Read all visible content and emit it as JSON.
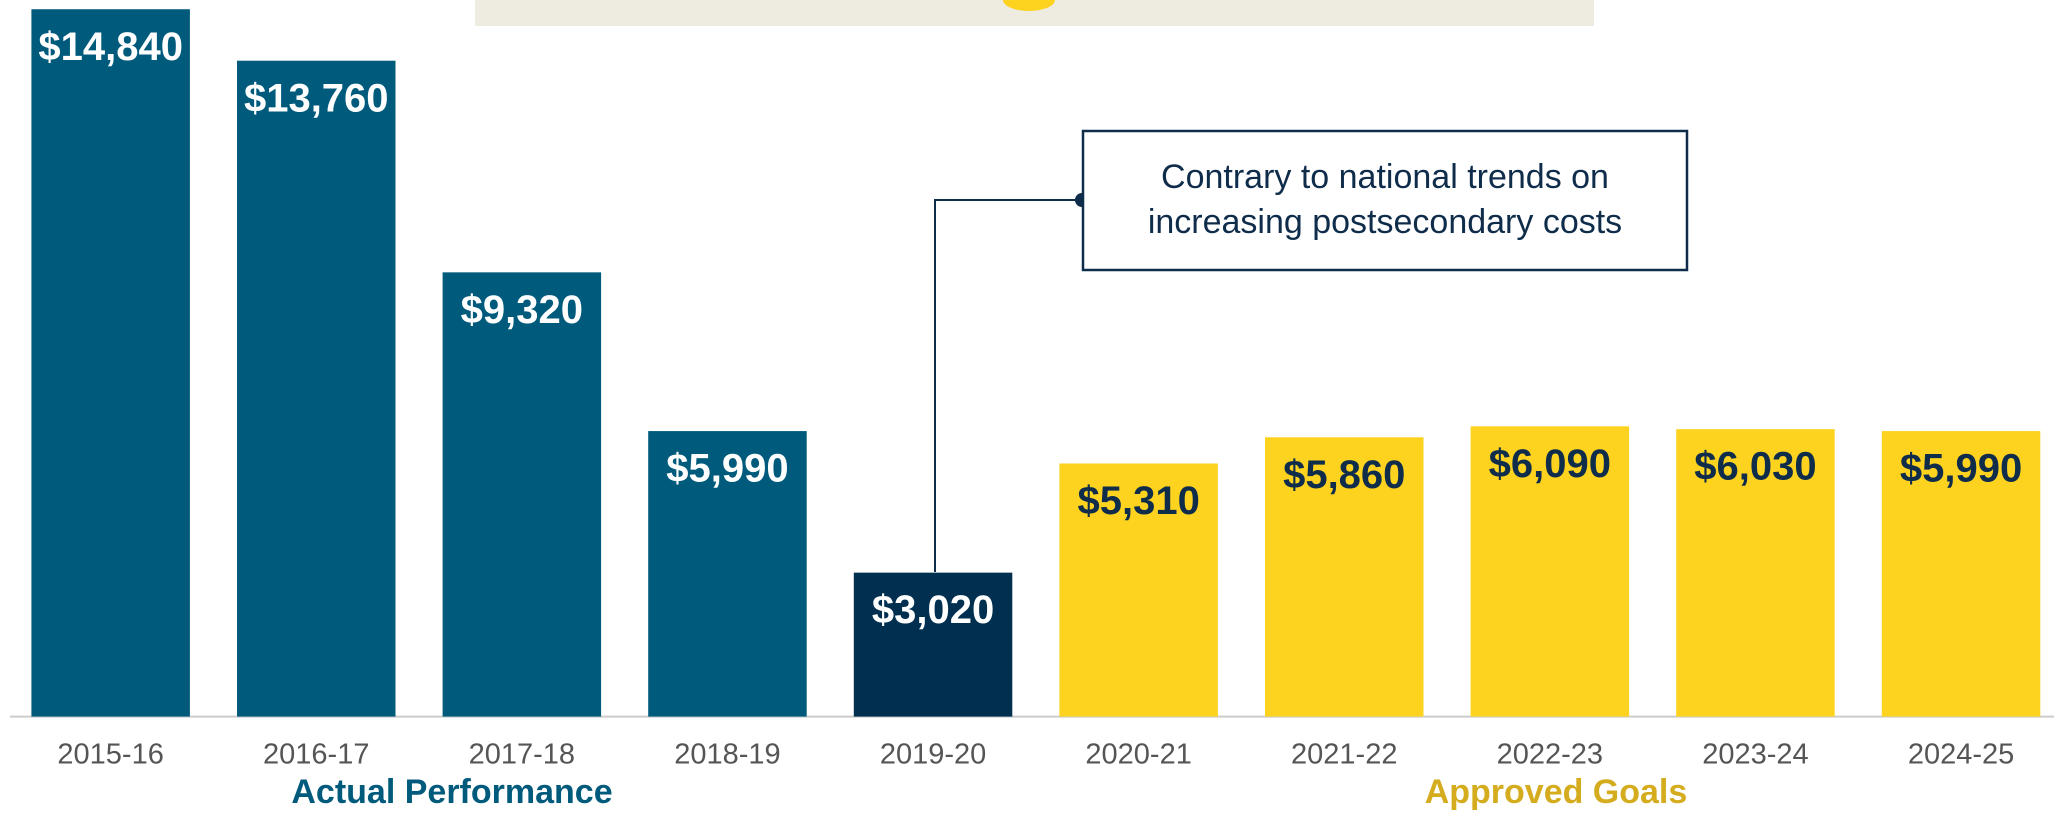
{
  "chart_data": {
    "type": "bar",
    "categories": [
      "2015-16",
      "2016-17",
      "2017-18",
      "2018-19",
      "2019-20",
      "2020-21",
      "2021-22",
      "2022-23",
      "2023-24",
      "2024-25"
    ],
    "values": [
      14840,
      13760,
      9320,
      5990,
      3020,
      5310,
      5860,
      6090,
      6030,
      5990
    ],
    "value_labels": [
      "$14,840",
      "$13,760",
      "$9,320",
      "$5,990",
      "$3,020",
      "$5,310",
      "$5,860",
      "$6,090",
      "$6,030",
      "$5,990"
    ],
    "colors": [
      "#005a7c",
      "#005a7c",
      "#005a7c",
      "#005a7c",
      "#002f4f",
      "#fdd320",
      "#fdd320",
      "#fdd320",
      "#fdd320",
      "#fdd320"
    ],
    "label_colors": [
      "#ffffff",
      "#ffffff",
      "#ffffff",
      "#ffffff",
      "#ffffff",
      "#0f2d4a",
      "#0f2d4a",
      "#0f2d4a",
      "#0f2d4a",
      "#0f2d4a"
    ],
    "ylim": [
      0,
      15000
    ],
    "groups": [
      {
        "label": "Actual Performance",
        "color": "#005a7c"
      },
      {
        "label": "Approved Goals",
        "color": "#d4ac1e"
      }
    ],
    "annotation": [
      "Contrary to national trends on",
      "increasing postsecondary costs"
    ]
  }
}
